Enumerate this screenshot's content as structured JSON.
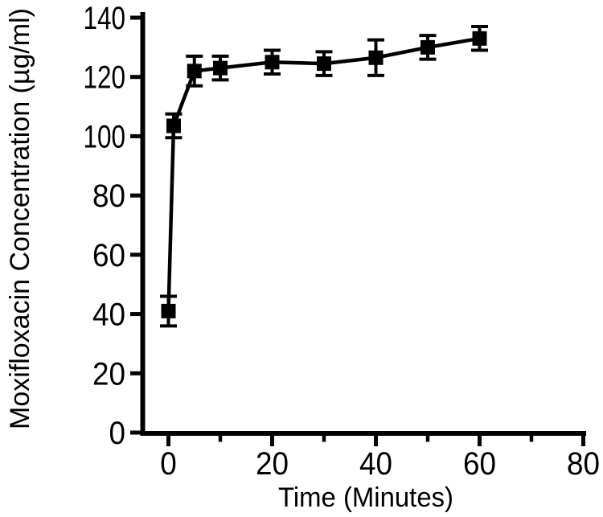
{
  "figure": {
    "background": "#ffffff",
    "ink": "#000000"
  },
  "chart_data": {
    "type": "line",
    "title": "",
    "xlabel": "Time (Minutes)",
    "ylabel": "Moxifloxacin Concentration (µg/ml)",
    "x": [
      0,
      1,
      5,
      10,
      20,
      30,
      40,
      50,
      60
    ],
    "series": [
      {
        "name": "Moxifloxacin concentration",
        "values": [
          41,
          103.5,
          122,
          123,
          125,
          124.5,
          126.5,
          130,
          133
        ],
        "errors": [
          5,
          4,
          5,
          4,
          4,
          4,
          6,
          4,
          4
        ],
        "marker": "filled-square",
        "color": "#000000",
        "error_bars": "vertical-capped"
      }
    ],
    "xlim": [
      0,
      80
    ],
    "ylim": [
      0,
      140
    ],
    "x_major_ticks": [
      0,
      20,
      40,
      60,
      80
    ],
    "x_minor_ticks": [
      10,
      30,
      50,
      70
    ],
    "y_major_ticks": [
      0,
      20,
      40,
      60,
      80,
      100,
      120,
      140
    ],
    "grid": false,
    "legend": "none"
  }
}
